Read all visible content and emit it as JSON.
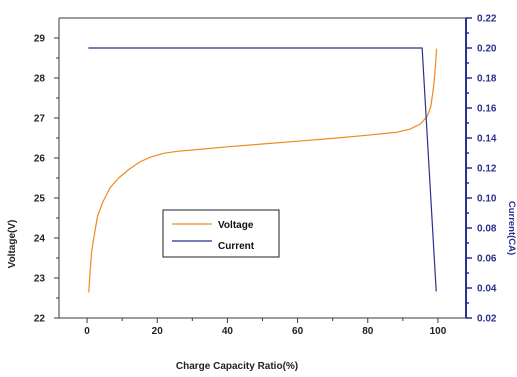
{
  "chart_data": {
    "type": "line",
    "title": "",
    "xlabel": "Charge Capacity Ratio(%)",
    "ylabel_left": "Voltage(V)",
    "ylabel_right": "Current(CA)",
    "xlim": [
      -8,
      108
    ],
    "ylim_left": [
      22,
      29.5
    ],
    "ylim_right": [
      0.02,
      0.22
    ],
    "x_ticks": [
      0,
      20,
      40,
      60,
      80,
      100
    ],
    "y_left_ticks": [
      22,
      23,
      24,
      25,
      26,
      27,
      28,
      29
    ],
    "y_right_ticks": [
      0.02,
      0.04,
      0.06,
      0.08,
      0.1,
      0.12,
      0.14,
      0.16,
      0.18,
      0.2,
      0.22
    ],
    "grid": false,
    "legend_position": "center-left",
    "series": [
      {
        "name": "Voltage",
        "axis": "left",
        "color": "#ef8a1e",
        "points": [
          [
            0.5,
            22.65
          ],
          [
            0.8,
            23.1
          ],
          [
            1.3,
            23.65
          ],
          [
            2.0,
            24.05
          ],
          [
            3.0,
            24.55
          ],
          [
            4.5,
            24.9
          ],
          [
            6.5,
            25.25
          ],
          [
            9.0,
            25.5
          ],
          [
            12.0,
            25.72
          ],
          [
            15.0,
            25.9
          ],
          [
            18.0,
            26.02
          ],
          [
            22.0,
            26.12
          ],
          [
            26.0,
            26.17
          ],
          [
            30.0,
            26.2
          ],
          [
            40.0,
            26.28
          ],
          [
            50.0,
            26.35
          ],
          [
            60.0,
            26.42
          ],
          [
            70.0,
            26.49
          ],
          [
            80.0,
            26.57
          ],
          [
            88.0,
            26.64
          ],
          [
            92.0,
            26.72
          ],
          [
            95.0,
            26.85
          ],
          [
            97.0,
            27.05
          ],
          [
            98.0,
            27.3
          ],
          [
            98.8,
            27.8
          ],
          [
            99.3,
            28.3
          ],
          [
            99.6,
            28.72
          ]
        ]
      },
      {
        "name": "Current",
        "axis": "right",
        "color": "#2b2f8e",
        "points": [
          [
            0.5,
            0.2
          ],
          [
            95.5,
            0.2
          ],
          [
            99.5,
            0.038
          ]
        ]
      }
    ]
  }
}
